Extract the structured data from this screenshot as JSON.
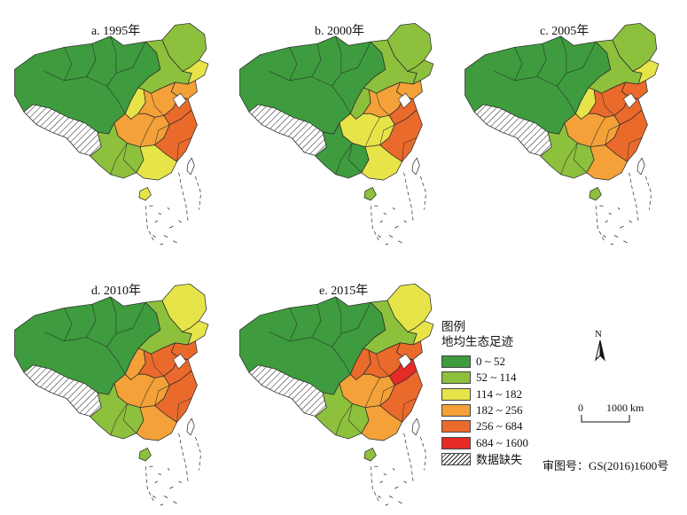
{
  "panels": [
    {
      "title": "a. 1995年",
      "fills": {
        "nw": "#3e9b3e",
        "ne": "#8cc03d",
        "heilongjiang": "#8cc03d",
        "jilin": "#e6e449",
        "liaoning": "#f3a138",
        "ningxia": "#e6e449",
        "northchina": "#f3a138",
        "shandong": "#ea6a2c",
        "central": "#f3a138",
        "east": "#ea6a2c",
        "sw": "#8cc03d",
        "south": "#e6e449",
        "hainan": "#e6e449",
        "taiwan": "#ffffff"
      }
    },
    {
      "title": "b. 2000年",
      "fills": {
        "nw": "#3e9b3e",
        "ne": "#8cc03d",
        "heilongjiang": "#8cc03d",
        "jilin": "#8cc03d",
        "liaoning": "#f3a138",
        "ningxia": "#8cc03d",
        "northchina": "#f3a138",
        "shandong": "#ea6a2c",
        "central": "#e6e449",
        "east": "#ea6a2c",
        "sw": "#3e9b3e",
        "south": "#e6e449",
        "hainan": "#8cc03d",
        "taiwan": "#ffffff"
      }
    },
    {
      "title": "c. 2005年",
      "fills": {
        "nw": "#3e9b3e",
        "ne": "#8cc03d",
        "heilongjiang": "#8cc03d",
        "jilin": "#e6e449",
        "liaoning": "#ea6a2c",
        "ningxia": "#e6e449",
        "northchina": "#ea6a2c",
        "shandong": "#ea6a2c",
        "central": "#f3a138",
        "east": "#ea6a2c",
        "sw": "#8cc03d",
        "south": "#f3a138",
        "hainan": "#8cc03d",
        "taiwan": "#ffffff"
      }
    },
    {
      "title": "d. 2010年",
      "fills": {
        "nw": "#3e9b3e",
        "ne": "#8cc03d",
        "heilongjiang": "#e6e449",
        "jilin": "#e6e449",
        "liaoning": "#ea6a2c",
        "ningxia": "#f3a138",
        "northchina": "#ea6a2c",
        "shandong": "#ea6a2c",
        "central": "#f3a138",
        "east": "#ea6a2c",
        "sw": "#8cc03d",
        "south": "#f3a138",
        "hainan": "#8cc03d",
        "taiwan": "#ffffff"
      }
    },
    {
      "title": "e. 2015年",
      "fills": {
        "nw": "#3e9b3e",
        "ne": "#8cc03d",
        "heilongjiang": "#e6e449",
        "jilin": "#e6e449",
        "liaoning": "#ea6a2c",
        "ningxia": "#ea6a2c",
        "northchina": "#ea6a2c",
        "shandong": "#e52b25",
        "central": "#f3a138",
        "east": "#ea6a2c",
        "sw": "#8cc03d",
        "south": "#f3a138",
        "hainan": "#8cc03d",
        "taiwan": "#ffffff"
      }
    }
  ],
  "legend": {
    "title": "图例",
    "subtitle": "地均生态足迹",
    "items": [
      {
        "label": "0 ~ 52",
        "color": "#3e9b3e"
      },
      {
        "label": "52 ~ 114",
        "color": "#8cc03d"
      },
      {
        "label": "114 ~ 182",
        "color": "#e6e449"
      },
      {
        "label": "182 ~ 256",
        "color": "#f3a138"
      },
      {
        "label": "256 ~ 684",
        "color": "#ea6a2c"
      },
      {
        "label": "684 ~ 1600",
        "color": "#e52b25"
      }
    ],
    "missing_label": "数据缺失"
  },
  "north_label": "N",
  "scale": {
    "zero": "0",
    "value": "1000 km"
  },
  "approval": "审图号：GS(2016)1600号"
}
